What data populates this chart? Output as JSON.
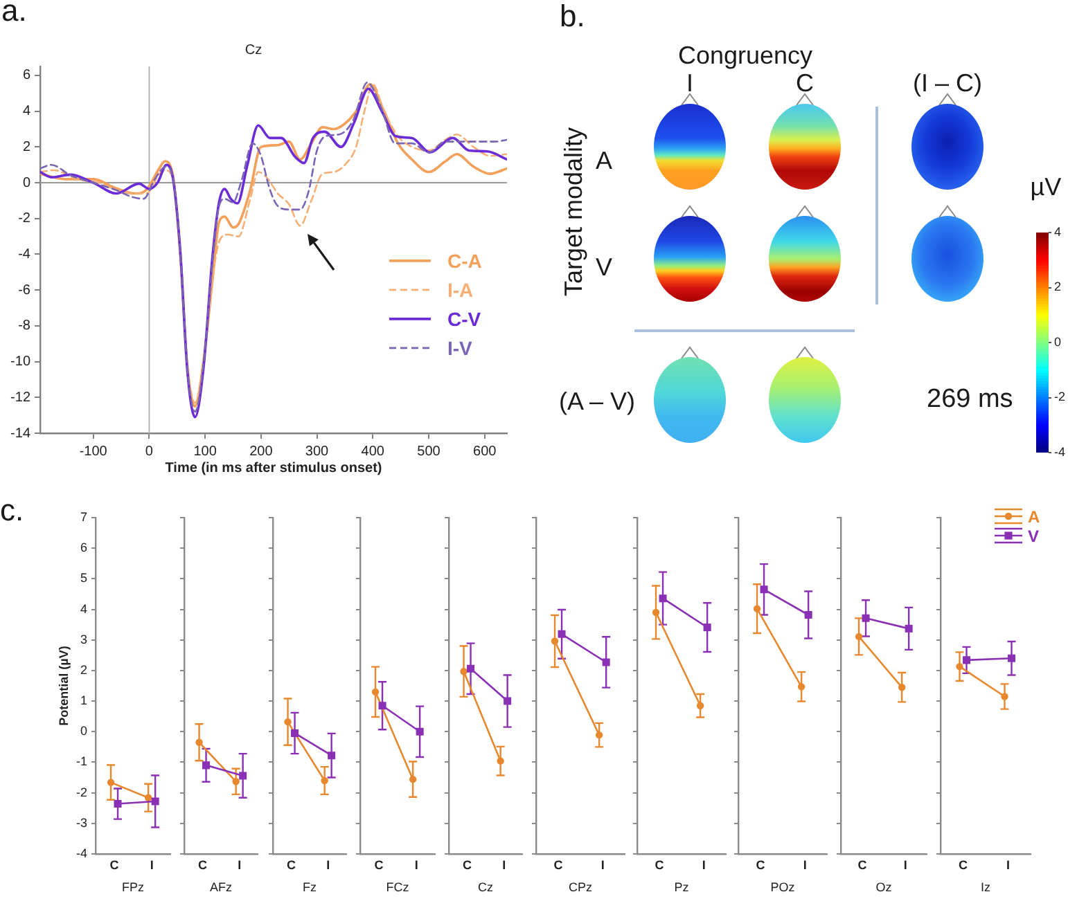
{
  "chart_data": [
    {
      "type": "line",
      "title": "Cz",
      "xlabel": "Time (in ms after stimulus onset)",
      "xlim": [
        -195,
        640
      ],
      "ylim": [
        -14,
        6.5
      ],
      "xticks": [
        -100,
        0,
        100,
        200,
        300,
        400,
        500,
        600
      ],
      "yticks": [
        -14,
        -12,
        -10,
        -8,
        -6,
        -4,
        -2,
        0,
        2,
        4,
        6
      ],
      "marker": "none",
      "legend": "right",
      "ref_lines": [
        {
          "axis": "x",
          "value": 0,
          "color": "#b4b4b4"
        },
        {
          "axis": "y",
          "value": 0,
          "color": "#999999"
        }
      ],
      "annotations": [
        "a."
      ],
      "series": [
        {
          "name": "C-A",
          "color": "#f2a05a",
          "line_style": "solid",
          "x": [
            -195,
            -150,
            -100,
            -60,
            -25,
            -5,
            18,
            28,
            43,
            56,
            68,
            82,
            97,
            113,
            125,
            135,
            150,
            160,
            180,
            200,
            230,
            250,
            270,
            290,
            310,
            330,
            350,
            370,
            395,
            420,
            445,
            470,
            500,
            530,
            550,
            580,
            610,
            640
          ],
          "values": [
            0.5,
            0.2,
            0.2,
            -0.3,
            -0.6,
            -0.4,
            0.8,
            1.2,
            0.3,
            -4.2,
            -10.2,
            -12.5,
            -10,
            -5.5,
            -2.2,
            -1.9,
            -2.5,
            -2.3,
            -0.5,
            2.0,
            2.1,
            2.3,
            1.3,
            2.2,
            3.1,
            3.0,
            3.3,
            4.0,
            5.5,
            4.0,
            2.2,
            1.3,
            0.6,
            1.2,
            1.6,
            0.9,
            0.5,
            0.8
          ]
        },
        {
          "name": "I-A",
          "color": "#f5ae74",
          "line_style": "dashed",
          "x": [
            -195,
            -170,
            -130,
            -90,
            -60,
            -30,
            -5,
            18,
            28,
            43,
            56,
            68,
            82,
            97,
            113,
            125,
            140,
            160,
            180,
            195,
            210,
            230,
            250,
            270,
            290,
            310,
            330,
            350,
            370,
            385,
            400,
            420,
            445,
            470,
            500,
            530,
            550,
            580,
            610,
            640
          ],
          "values": [
            0.6,
            0.7,
            0.2,
            0.0,
            -0.4,
            -0.6,
            -0.6,
            0.5,
            0.7,
            0.2,
            -4,
            -10,
            -12.3,
            -10,
            -5.5,
            -3.3,
            -2.9,
            -3.0,
            -1.0,
            0.6,
            0.3,
            -0.6,
            -1.2,
            -2.4,
            -1.0,
            0.5,
            0.6,
            1.0,
            2.0,
            4.0,
            5.5,
            4.0,
            2.6,
            2.0,
            1.8,
            2.4,
            2.7,
            2.0,
            1.5,
            1.6
          ]
        },
        {
          "name": "C-V",
          "color": "#6b2bd6",
          "line_style": "solid",
          "x": [
            -195,
            -174,
            -141,
            -100,
            -59,
            -18,
            0,
            15,
            31,
            43,
            56,
            68,
            82,
            97,
            113,
            125,
            135,
            146,
            158,
            175,
            195,
            216,
            236,
            261,
            277,
            293,
            314,
            343,
            367,
            392,
            416,
            441,
            470,
            502,
            543,
            572,
            605,
            640
          ],
          "values": [
            0.6,
            0.3,
            0.45,
            0.0,
            -0.6,
            -0.05,
            -0.35,
            0.0,
            1.0,
            0.15,
            -4,
            -10.4,
            -13.1,
            -10.4,
            -4.2,
            -1.1,
            -0.35,
            -0.9,
            -1.15,
            0.9,
            3.2,
            2.5,
            2.5,
            1.45,
            1.1,
            2.5,
            2.85,
            2.0,
            3.4,
            5.25,
            4.0,
            2.6,
            2.5,
            1.7,
            2.5,
            1.8,
            1.75,
            1.3
          ]
        },
        {
          "name": "I-V",
          "color": "#7a65b5",
          "line_style": "dashed",
          "x": [
            -195,
            -175,
            -140,
            -100,
            -60,
            -30,
            -10,
            10,
            30,
            43,
            56,
            68,
            82,
            97,
            113,
            125,
            135,
            150,
            165,
            185,
            200,
            215,
            230,
            250,
            270,
            285,
            300,
            315,
            340,
            365,
            390,
            415,
            440,
            470,
            500,
            530,
            560,
            590,
            620,
            640
          ],
          "values": [
            0.8,
            1.0,
            0.4,
            0.0,
            -0.4,
            -0.8,
            -0.9,
            0.2,
            0.9,
            0.2,
            -4,
            -10.3,
            -12.8,
            -10.2,
            -4.5,
            -1.3,
            -0.9,
            -1.1,
            0.1,
            2.2,
            1.5,
            -0.3,
            -1.3,
            -1.5,
            -1.5,
            -0.5,
            1.8,
            2.6,
            2.7,
            3.5,
            5.6,
            4.2,
            2.2,
            2.2,
            1.7,
            2.3,
            2.3,
            2.3,
            2.3,
            2.4
          ]
        }
      ]
    },
    {
      "type": "heatmap",
      "xlabel": "Congruency",
      "categories": [
        "I",
        "C",
        "(I – C)"
      ],
      "y_categories": [
        "A",
        "V",
        "(A – V)"
      ],
      "cells": [
        [
          null,
          null,
          null
        ],
        [
          null,
          null,
          null
        ],
        [
          null,
          null,
          null
        ]
      ],
      "ylabel": "Target modality",
      "clabel": "µV",
      "clim": [
        -4,
        4
      ],
      "cticks": [
        -4,
        -2,
        0,
        2,
        4
      ],
      "annotations": [
        "b.",
        "269 ms"
      ]
    },
    {
      "type": "line",
      "categories": [
        "C",
        "I"
      ],
      "xlabel": "FPz",
      "ylabel": "Potential (µV)",
      "ylim": [
        -4,
        7
      ],
      "yticks": [
        -4,
        -3,
        -2,
        -1,
        0,
        1,
        2,
        3,
        4,
        5,
        6,
        7
      ],
      "annotations": [
        "c."
      ],
      "series": [
        {
          "color": "#e8882e",
          "marker": "circle",
          "values": [
            -1.66,
            -2.16
          ],
          "errors": [
            0.57,
            0.45
          ]
        },
        {
          "color": "#8a30b5",
          "marker": "square",
          "values": [
            -2.36,
            -2.28
          ],
          "errors": [
            0.5,
            0.85
          ]
        }
      ]
    },
    {
      "type": "line",
      "categories": [
        "C",
        "I"
      ],
      "xlabel": "AFz",
      "ylim": [
        -4,
        7
      ],
      "yticks": [
        -4,
        -3,
        -2,
        -1,
        0,
        1,
        2,
        3,
        4,
        5,
        6,
        7
      ],
      "tick_labels": "x",
      "series": [
        {
          "color": "#e8882e",
          "marker": "circle",
          "values": [
            -0.35,
            -1.63
          ],
          "errors": [
            0.6,
            0.42
          ]
        },
        {
          "color": "#8a30b5",
          "marker": "square",
          "values": [
            -1.1,
            -1.44
          ],
          "errors": [
            0.54,
            0.72
          ]
        }
      ]
    },
    {
      "type": "line",
      "categories": [
        "C",
        "I"
      ],
      "xlabel": "Fz",
      "ylim": [
        -4,
        7
      ],
      "yticks": [
        -4,
        -3,
        -2,
        -1,
        0,
        1,
        2,
        3,
        4,
        5,
        6,
        7
      ],
      "tick_labels": "x",
      "series": [
        {
          "color": "#e8882e",
          "marker": "circle",
          "values": [
            0.32,
            -1.6
          ],
          "errors": [
            0.76,
            0.45
          ]
        },
        {
          "color": "#8a30b5",
          "marker": "square",
          "values": [
            -0.05,
            -0.78
          ],
          "errors": [
            0.67,
            0.72
          ]
        }
      ]
    },
    {
      "type": "line",
      "categories": [
        "C",
        "I"
      ],
      "xlabel": "FCz",
      "ylim": [
        -4,
        7
      ],
      "yticks": [
        -4,
        -3,
        -2,
        -1,
        0,
        1,
        2,
        3,
        4,
        5,
        6,
        7
      ],
      "tick_labels": "x",
      "series": [
        {
          "color": "#e8882e",
          "marker": "circle",
          "values": [
            1.3,
            -1.56
          ],
          "errors": [
            0.82,
            0.58
          ]
        },
        {
          "color": "#8a30b5",
          "marker": "square",
          "values": [
            0.85,
            0.0
          ],
          "errors": [
            0.78,
            0.83
          ]
        }
      ]
    },
    {
      "type": "line",
      "categories": [
        "C",
        "I"
      ],
      "xlabel": "Cz",
      "ylim": [
        -4,
        7
      ],
      "yticks": [
        -4,
        -3,
        -2,
        -1,
        0,
        1,
        2,
        3,
        4,
        5,
        6,
        7
      ],
      "tick_labels": "x",
      "series": [
        {
          "color": "#e8882e",
          "marker": "circle",
          "values": [
            1.97,
            -0.96
          ],
          "errors": [
            0.83,
            0.47
          ]
        },
        {
          "color": "#8a30b5",
          "marker": "square",
          "values": [
            2.06,
            1.0
          ],
          "errors": [
            0.83,
            0.85
          ]
        }
      ]
    },
    {
      "type": "line",
      "categories": [
        "C",
        "I"
      ],
      "xlabel": "CPz",
      "ylim": [
        -4,
        7
      ],
      "yticks": [
        -4,
        -3,
        -2,
        -1,
        0,
        1,
        2,
        3,
        4,
        5,
        6,
        7
      ],
      "tick_labels": "x",
      "series": [
        {
          "color": "#e8882e",
          "marker": "circle",
          "values": [
            2.96,
            -0.11
          ],
          "errors": [
            0.85,
            0.39
          ]
        },
        {
          "color": "#8a30b5",
          "marker": "square",
          "values": [
            3.19,
            2.27
          ],
          "errors": [
            0.8,
            0.83
          ]
        }
      ]
    },
    {
      "type": "line",
      "categories": [
        "C",
        "I"
      ],
      "xlabel": "Pz",
      "ylim": [
        -4,
        7
      ],
      "yticks": [
        -4,
        -3,
        -2,
        -1,
        0,
        1,
        2,
        3,
        4,
        5,
        6,
        7
      ],
      "tick_labels": "x",
      "series": [
        {
          "color": "#e8882e",
          "marker": "circle",
          "values": [
            3.9,
            0.85
          ],
          "errors": [
            0.87,
            0.38
          ]
        },
        {
          "color": "#8a30b5",
          "marker": "square",
          "values": [
            4.36,
            3.41
          ],
          "errors": [
            0.86,
            0.8
          ]
        }
      ]
    },
    {
      "type": "line",
      "categories": [
        "C",
        "I"
      ],
      "xlabel": "POz",
      "ylim": [
        -4,
        7
      ],
      "yticks": [
        -4,
        -3,
        -2,
        -1,
        0,
        1,
        2,
        3,
        4,
        5,
        6,
        7
      ],
      "tick_labels": "x",
      "series": [
        {
          "color": "#e8882e",
          "marker": "circle",
          "values": [
            4.02,
            1.47
          ],
          "errors": [
            0.8,
            0.48
          ]
        },
        {
          "color": "#8a30b5",
          "marker": "square",
          "values": [
            4.65,
            3.82
          ],
          "errors": [
            0.83,
            0.77
          ]
        }
      ]
    },
    {
      "type": "line",
      "categories": [
        "C",
        "I"
      ],
      "xlabel": "Oz",
      "ylim": [
        -4,
        7
      ],
      "yticks": [
        -4,
        -3,
        -2,
        -1,
        0,
        1,
        2,
        3,
        4,
        5,
        6,
        7
      ],
      "tick_labels": "x",
      "series": [
        {
          "color": "#e8882e",
          "marker": "circle",
          "values": [
            3.11,
            1.45
          ],
          "errors": [
            0.6,
            0.48
          ]
        },
        {
          "color": "#8a30b5",
          "marker": "square",
          "values": [
            3.71,
            3.37
          ],
          "errors": [
            0.59,
            0.69
          ]
        }
      ]
    },
    {
      "type": "line",
      "categories": [
        "C",
        "I"
      ],
      "xlabel": "Iz",
      "ylim": [
        -4,
        7
      ],
      "yticks": [
        -4,
        -3,
        -2,
        -1,
        0,
        1,
        2,
        3,
        4,
        5,
        6,
        7
      ],
      "tick_labels": "x",
      "legend": "top right",
      "series": [
        {
          "name": "A",
          "color": "#e8882e",
          "marker": "circle",
          "values": [
            2.13,
            1.15
          ],
          "errors": [
            0.47,
            0.41
          ]
        },
        {
          "name": "V",
          "color": "#8a30b5",
          "marker": "square",
          "values": [
            2.34,
            2.4
          ],
          "errors": [
            0.43,
            0.55
          ]
        }
      ]
    }
  ]
}
